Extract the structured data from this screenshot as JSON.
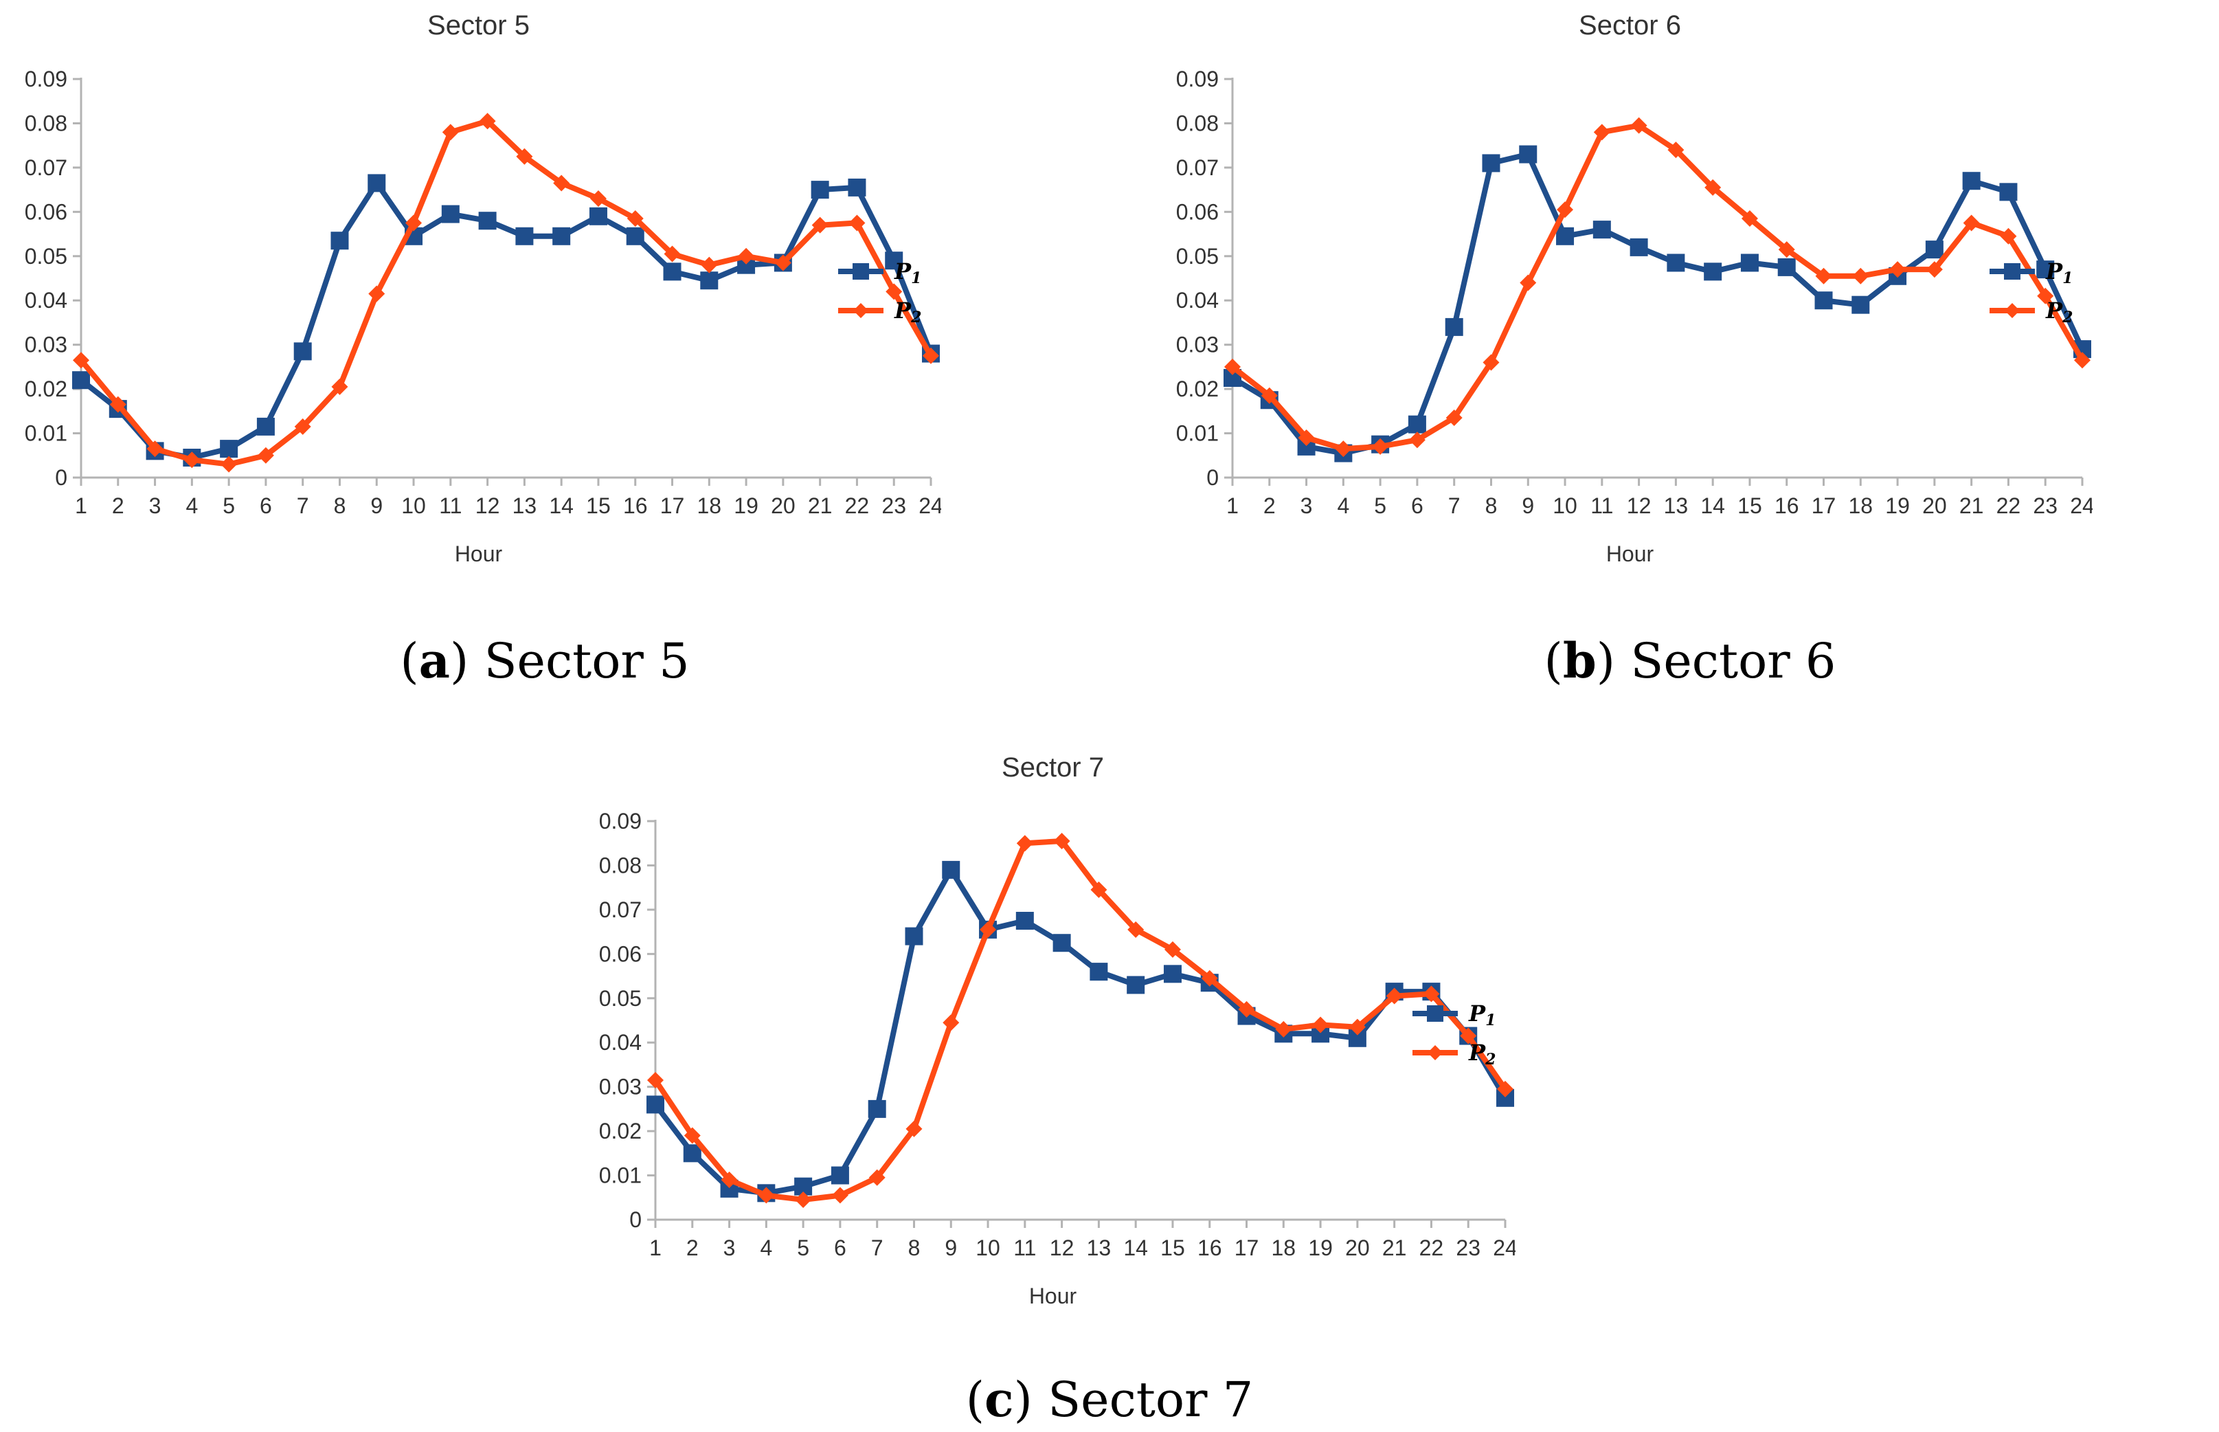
{
  "captions": [
    {
      "letter": "a",
      "text": "Sector 5"
    },
    {
      "letter": "b",
      "text": "Sector 6"
    },
    {
      "letter": "c",
      "text": "Sector 7"
    }
  ],
  "colors": {
    "p1": "#1f4e8c",
    "p2": "#ff4b14",
    "axis": "#b3b3b3",
    "text": "#333333"
  },
  "legend": {
    "p1_label": "P",
    "p1_sub": "1",
    "p2_label": "P",
    "p2_sub": "2"
  },
  "chart_data": [
    {
      "type": "line",
      "title": "Sector 5",
      "xlabel": "Hour",
      "ylabel": "",
      "ylim": [
        0,
        0.09
      ],
      "yticks": [
        "0",
        "0.01",
        "0.02",
        "0.03",
        "0.04",
        "0.05",
        "0.06",
        "0.07",
        "0.08",
        "0.09"
      ],
      "categories": [
        "1",
        "2",
        "3",
        "4",
        "5",
        "6",
        "7",
        "8",
        "9",
        "10",
        "11",
        "12",
        "13",
        "14",
        "15",
        "16",
        "17",
        "18",
        "19",
        "20",
        "21",
        "22",
        "23",
        "24"
      ],
      "legend_position": "right",
      "series": [
        {
          "name": "P1",
          "marker": "square",
          "values": [
            0.022,
            0.0155,
            0.006,
            0.0045,
            0.0065,
            0.0115,
            0.0285,
            0.0535,
            0.0665,
            0.0545,
            0.0595,
            0.058,
            0.0545,
            0.0545,
            0.059,
            0.0545,
            0.0465,
            0.0445,
            0.048,
            0.0485,
            0.065,
            0.0655,
            0.049,
            0.028
          ]
        },
        {
          "name": "P2",
          "marker": "diamond",
          "values": [
            0.0265,
            0.0165,
            0.0065,
            0.004,
            0.003,
            0.005,
            0.0115,
            0.0205,
            0.0415,
            0.0575,
            0.078,
            0.0805,
            0.0725,
            0.0665,
            0.063,
            0.0585,
            0.0505,
            0.048,
            0.05,
            0.0485,
            0.057,
            0.0575,
            0.042,
            0.0275
          ]
        }
      ]
    },
    {
      "type": "line",
      "title": "Sector 6",
      "xlabel": "Hour",
      "ylabel": "",
      "ylim": [
        0,
        0.09
      ],
      "yticks": [
        "0",
        "0.01",
        "0.02",
        "0.03",
        "0.04",
        "0.05",
        "0.06",
        "0.07",
        "0.08",
        "0.09"
      ],
      "categories": [
        "1",
        "2",
        "3",
        "4",
        "5",
        "6",
        "7",
        "8",
        "9",
        "10",
        "11",
        "12",
        "13",
        "14",
        "15",
        "16",
        "17",
        "18",
        "19",
        "20",
        "21",
        "22",
        "23",
        "24"
      ],
      "legend_position": "right",
      "series": [
        {
          "name": "P1",
          "marker": "square",
          "values": [
            0.0225,
            0.0175,
            0.007,
            0.0055,
            0.0075,
            0.012,
            0.034,
            0.071,
            0.073,
            0.0545,
            0.056,
            0.052,
            0.0485,
            0.0465,
            0.0485,
            0.0475,
            0.04,
            0.039,
            0.0455,
            0.0515,
            0.067,
            0.0645,
            0.047,
            0.029
          ]
        },
        {
          "name": "P2",
          "marker": "diamond",
          "values": [
            0.025,
            0.0185,
            0.009,
            0.0065,
            0.007,
            0.0085,
            0.0135,
            0.026,
            0.044,
            0.0605,
            0.078,
            0.0795,
            0.074,
            0.0655,
            0.0585,
            0.0515,
            0.0455,
            0.0455,
            0.047,
            0.047,
            0.0575,
            0.0545,
            0.041,
            0.0265
          ]
        }
      ]
    },
    {
      "type": "line",
      "title": "Sector 7",
      "xlabel": "Hour",
      "ylabel": "",
      "ylim": [
        0,
        0.09
      ],
      "yticks": [
        "0",
        "0.01",
        "0.02",
        "0.03",
        "0.04",
        "0.05",
        "0.06",
        "0.07",
        "0.08",
        "0.09"
      ],
      "categories": [
        "1",
        "2",
        "3",
        "4",
        "5",
        "6",
        "7",
        "8",
        "9",
        "10",
        "11",
        "12",
        "13",
        "14",
        "15",
        "16",
        "17",
        "18",
        "19",
        "20",
        "21",
        "22",
        "23",
        "24"
      ],
      "legend_position": "right",
      "series": [
        {
          "name": "P1",
          "marker": "square",
          "values": [
            0.026,
            0.015,
            0.007,
            0.006,
            0.0075,
            0.01,
            0.025,
            0.064,
            0.079,
            0.0655,
            0.0675,
            0.0625,
            0.056,
            0.053,
            0.0555,
            0.0535,
            0.046,
            0.042,
            0.042,
            0.041,
            0.0515,
            0.0515,
            0.0415,
            0.0275
          ]
        },
        {
          "name": "P2",
          "marker": "diamond",
          "values": [
            0.0315,
            0.019,
            0.009,
            0.0055,
            0.0045,
            0.0055,
            0.0095,
            0.0205,
            0.0445,
            0.0655,
            0.085,
            0.0855,
            0.0745,
            0.0655,
            0.061,
            0.0545,
            0.0475,
            0.043,
            0.044,
            0.0435,
            0.0505,
            0.051,
            0.0415,
            0.0295
          ]
        }
      ]
    }
  ]
}
